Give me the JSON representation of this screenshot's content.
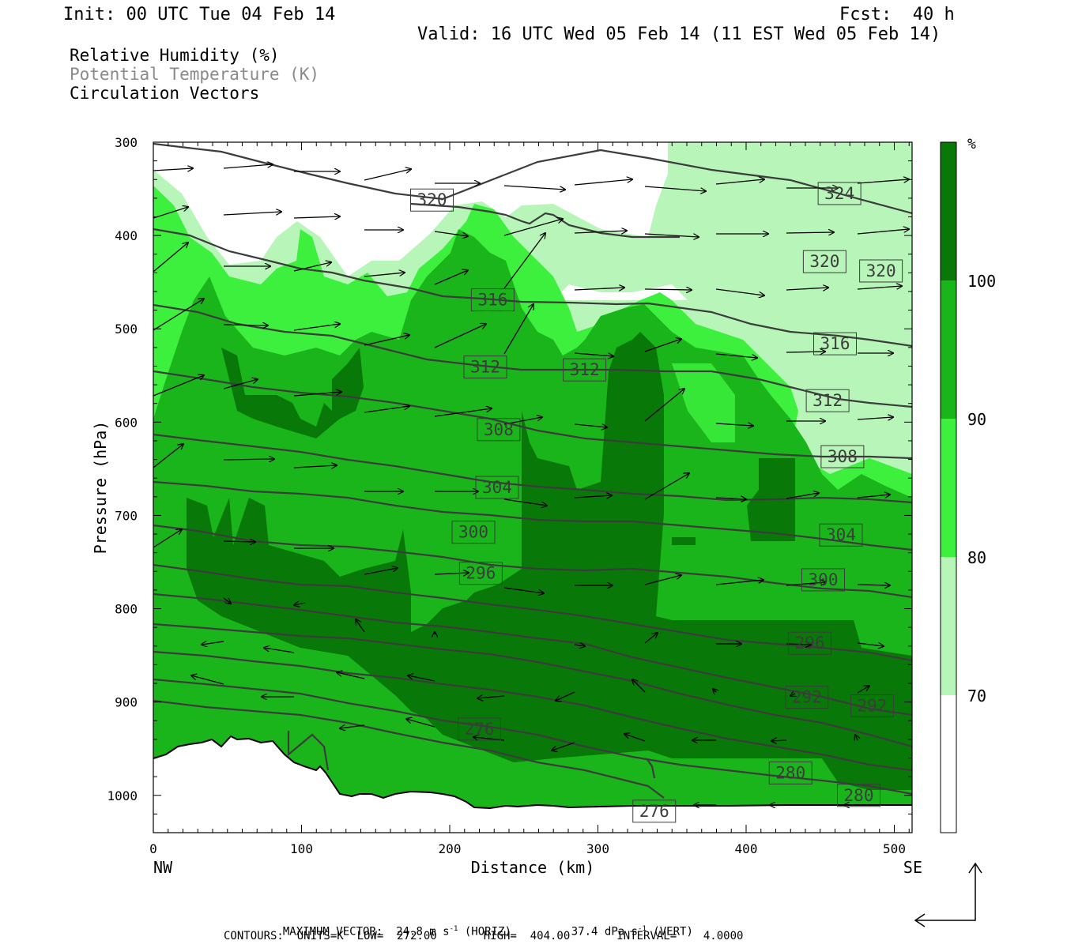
{
  "header": {
    "init": "Init: 00 UTC Tue 04 Feb 14",
    "fcst": "Fcst:  40 h",
    "valid": "Valid: 16 UTC Wed 05 Feb 14 (11 EST Wed 05 Feb 14)"
  },
  "legend": {
    "rh": "Relative Humidity (%)",
    "theta": "Potential Temperature (K)",
    "vectors": "Circulation Vectors"
  },
  "footer": {
    "max_vector_label": "MAXIMUM VECTOR:",
    "horiz": "24.8 m s",
    "horiz_unit": "(HORIZ)",
    "vert": "37.4 dPa s",
    "vert_unit": "(VERT)",
    "exp": "-1",
    "contours": "CONTOURS:  UNITS=K  LOW=  272.00       HIGH=  404.00       INTERVAL=    4.0000"
  },
  "colors": {
    "rh_70_80": "#b8f5b8",
    "rh_80_90": "#3df03d",
    "rh_90_100": "#1ab51a",
    "rh_100": "#087808",
    "isentrope": "#3c3c3c"
  },
  "chart_data": {
    "type": "cross-section",
    "xlabel": "Distance (km)",
    "ylabel": "Pressure (hPa)",
    "x_ticks": [
      "0",
      "100",
      "200",
      "300",
      "400",
      "500"
    ],
    "y_ticks": [
      "300",
      "400",
      "500",
      "600",
      "700",
      "800",
      "900",
      "1000"
    ],
    "xlim": [
      0,
      512
    ],
    "ylim": [
      1040,
      300
    ],
    "endpoints": {
      "left": "NW",
      "right": "SE"
    },
    "colorbar": {
      "unit": "%",
      "levels": [
        "70",
        "80",
        "90",
        "100"
      ]
    },
    "isentrope_labels": [
      {
        "text": "320",
        "x": 188,
        "p": 362
      },
      {
        "text": "324",
        "x": 463,
        "p": 355
      },
      {
        "text": "320",
        "x": 453,
        "p": 428
      },
      {
        "text": "320",
        "x": 491,
        "p": 438
      },
      {
        "text": "316",
        "x": 229,
        "p": 469
      },
      {
        "text": "316",
        "x": 460,
        "p": 516
      },
      {
        "text": "312",
        "x": 224,
        "p": 541
      },
      {
        "text": "312",
        "x": 291,
        "p": 544
      },
      {
        "text": "312",
        "x": 455,
        "p": 577
      },
      {
        "text": "308",
        "x": 233,
        "p": 608
      },
      {
        "text": "308",
        "x": 465,
        "p": 637
      },
      {
        "text": "304",
        "x": 232,
        "p": 670
      },
      {
        "text": "304",
        "x": 464,
        "p": 721
      },
      {
        "text": "300",
        "x": 216,
        "p": 718
      },
      {
        "text": "300",
        "x": 452,
        "p": 769
      },
      {
        "text": "296",
        "x": 221,
        "p": 762
      },
      {
        "text": "296",
        "x": 443,
        "p": 837
      },
      {
        "text": "292",
        "x": 441,
        "p": 895
      },
      {
        "text": "292",
        "x": 485,
        "p": 904
      },
      {
        "text": "276",
        "x": 220,
        "p": 929
      },
      {
        "text": "280",
        "x": 430,
        "p": 976
      },
      {
        "text": "280",
        "x": 476,
        "p": 1000
      },
      {
        "text": "276",
        "x": 338,
        "p": 1017
      }
    ]
  }
}
